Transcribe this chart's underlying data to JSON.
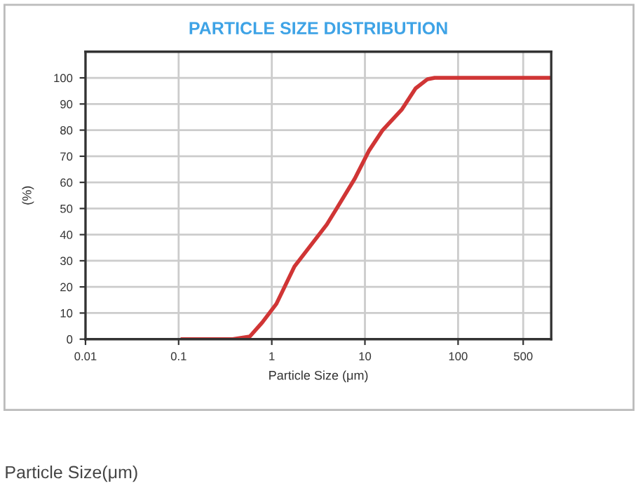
{
  "chart_data": {
    "type": "line",
    "title": "PARTICLE SIZE DISTRIBUTION",
    "xlabel": "Particle Size (μm)",
    "ylabel": "(%)",
    "log": "x",
    "xlim": [
      0.01,
      1000
    ],
    "xticks": [
      0.01,
      0.1,
      1,
      10,
      100,
      500
    ],
    "ylim": [
      0,
      110
    ],
    "yticks": [
      0,
      10,
      20,
      30,
      40,
      50,
      60,
      70,
      80,
      90,
      100
    ],
    "grid": true,
    "series": [
      {
        "color": "#d03535",
        "x": [
          0.11,
          0.2,
          0.38,
          0.58,
          0.79,
          1.12,
          1.75,
          3.9,
          4.97,
          7.8,
          11,
          15.5,
          25,
          35,
          47,
          56,
          100,
          300,
          1000
        ],
        "values": [
          0,
          0,
          0,
          1,
          6.4,
          13.5,
          27.8,
          43.9,
          50,
          61.5,
          72,
          80,
          88,
          96,
          99.5,
          100,
          100,
          100,
          100
        ]
      }
    ],
    "annotations": [
      "Particle Size(μm)"
    ]
  }
}
